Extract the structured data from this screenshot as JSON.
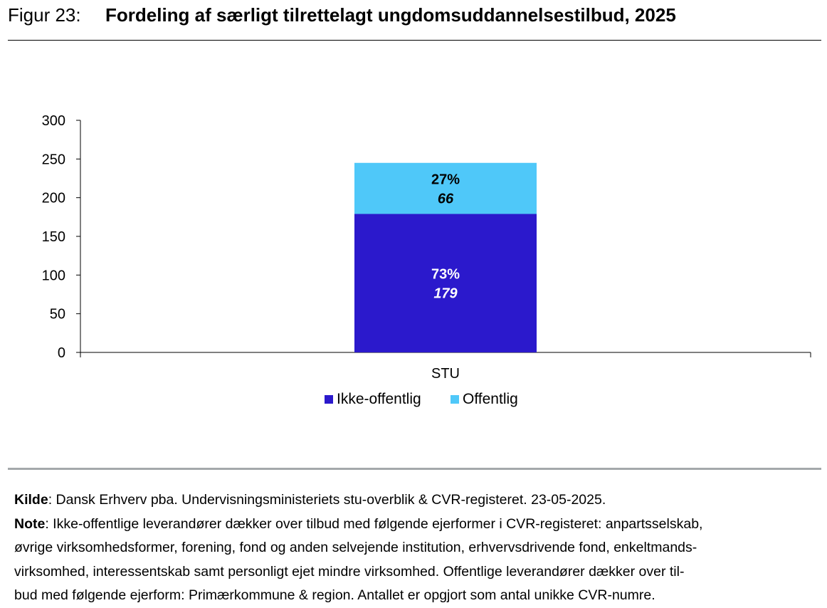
{
  "figure": {
    "label": "Figur 23:",
    "title": "Fordeling af særligt tilrettelagt ungdomsuddannelsestilbud, 2025"
  },
  "chart_data": {
    "type": "bar",
    "stacked": true,
    "categories": [
      "STU"
    ],
    "series": [
      {
        "name": "Ikke-offentlig",
        "values": [
          179
        ],
        "percent_labels": [
          "73%"
        ],
        "value_labels": [
          "179"
        ],
        "color": "#2b19cc",
        "label_color": "#ffffff"
      },
      {
        "name": "Offentlig",
        "values": [
          66
        ],
        "percent_labels": [
          "27%"
        ],
        "value_labels": [
          "66"
        ],
        "color": "#4fc8f9",
        "label_color": "#000000"
      }
    ],
    "ylim": [
      0,
      300
    ],
    "yticks": [
      "0",
      "50",
      "100",
      "150",
      "200",
      "250",
      "300"
    ],
    "legend_position": "bottom",
    "grid": false
  },
  "footer": {
    "source_label": "Kilde",
    "source_text": ": Dansk Erhverv pba. Undervisningsministeriets stu-overblik & CVR-registeret. 23-05-2025.",
    "note_label": "Note",
    "note_first": ": Ikke-offentlige leverandører dækker over tilbud med følgende ejerformer i CVR-registeret: anpartsselskab,",
    "note_lines": [
      "øvrige virksomhedsformer, forening, fond og anden selvejende institution, erhvervsdrivende fond, enkeltmands-",
      "virksomhed, interessentskab samt personligt ejet mindre virksomhed. Offentlige leverandører dækker over til-",
      "bud med følgende ejerform: Primærkommune & region. Antallet er opgjort som antal unikke CVR-numre."
    ]
  }
}
